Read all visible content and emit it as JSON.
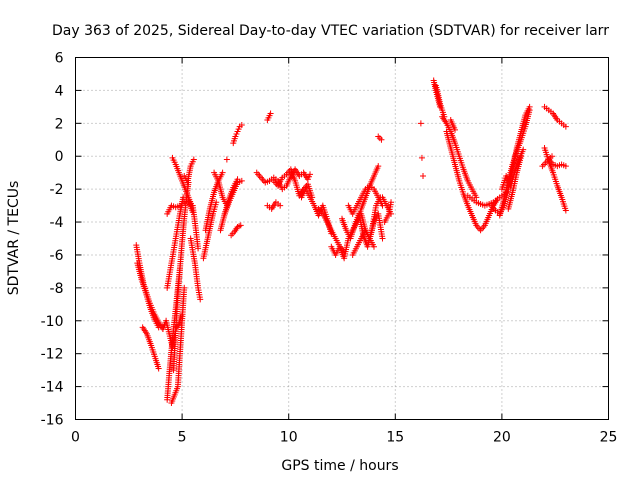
{
  "chart_data": {
    "type": "scatter",
    "title": "Day 363 of 2025, Sidereal Day-to-day VTEC variation (SDTVAR) for receiver larr",
    "xlabel": "GPS time / hours",
    "ylabel": "SDTVAR / TECUs",
    "xlim": [
      0,
      25
    ],
    "ylim": [
      -16,
      6
    ],
    "xticks": [
      "0",
      "5",
      "10",
      "15",
      "20",
      "25"
    ],
    "yticks": [
      "-16",
      "-14",
      "-12",
      "-10",
      "-8",
      "-6",
      "-4",
      "-2",
      "0",
      "2",
      "4",
      "6"
    ],
    "grid": true,
    "marker": "plus",
    "color": "#ff0000",
    "segments": [
      {
        "x": [
          2.85,
          3.0,
          3.2,
          3.45,
          3.7,
          3.95,
          4.1
        ],
        "y": [
          -5.4,
          -6.5,
          -7.8,
          -8.8,
          -9.6,
          -10.2,
          -10.5
        ]
      },
      {
        "x": [
          2.9,
          3.1,
          3.3,
          3.5,
          3.7,
          3.9
        ],
        "y": [
          -6.5,
          -7.5,
          -8.3,
          -9.2,
          -9.9,
          -10.4
        ]
      },
      {
        "x": [
          3.15,
          3.35,
          3.55,
          3.75,
          3.9
        ],
        "y": [
          -10.4,
          -10.8,
          -11.5,
          -12.3,
          -12.9
        ]
      },
      {
        "x": [
          4.1,
          4.25,
          4.4,
          4.55,
          4.7,
          4.85,
          4.95
        ],
        "y": [
          -10.5,
          -10.0,
          -10.8,
          -11.6,
          -10.5,
          -10.2,
          -9.7
        ]
      },
      {
        "x": [
          4.3,
          4.4,
          4.5,
          4.6,
          4.7,
          4.8,
          4.9
        ],
        "y": [
          -14.8,
          -13.2,
          -11.8,
          -10.5,
          -9.3,
          -8.0,
          -6.8
        ]
      },
      {
        "x": [
          4.5,
          4.65,
          4.8,
          4.9,
          5.0,
          5.1
        ],
        "y": [
          -15.0,
          -14.5,
          -14.0,
          -12.0,
          -10.0,
          -8.0
        ]
      },
      {
        "x": [
          4.6,
          4.7,
          4.8,
          4.9,
          5.0,
          5.1,
          5.2,
          5.3
        ],
        "y": [
          -13.0,
          -10.5,
          -8.5,
          -6.8,
          -5.2,
          -3.8,
          -2.6,
          -1.6
        ]
      },
      {
        "x": [
          4.55,
          4.7,
          4.85,
          5.0,
          5.15,
          5.3,
          5.45
        ],
        "y": [
          -0.1,
          -0.5,
          -1.0,
          -1.5,
          -2.0,
          -2.5,
          -3.0
        ]
      },
      {
        "x": [
          4.3,
          4.5,
          4.7,
          4.9,
          5.1,
          5.3,
          5.5
        ],
        "y": [
          -3.5,
          -3.0,
          -3.1,
          -3.0,
          -2.8,
          -2.7,
          -3.4
        ]
      },
      {
        "x": [
          4.3,
          4.5,
          4.7,
          4.9,
          5.05
        ],
        "y": [
          -8.0,
          -6.5,
          -5.0,
          -3.5,
          -2.5
        ]
      },
      {
        "x": [
          5.1,
          5.25,
          5.4,
          5.55
        ],
        "y": [
          -1.2,
          -1.6,
          -0.6,
          -0.2
        ]
      },
      {
        "x": [
          5.4,
          5.6,
          5.75,
          5.85
        ],
        "y": [
          -5.0,
          -6.5,
          -8.0,
          -8.7
        ]
      },
      {
        "x": [
          5.5,
          5.65,
          5.75
        ],
        "y": [
          -3.0,
          -4.5,
          -5.6
        ]
      },
      {
        "x": [
          6.0,
          6.15,
          6.3,
          6.45,
          6.6
        ],
        "y": [
          -6.2,
          -5.3,
          -4.4,
          -3.5,
          -2.8
        ]
      },
      {
        "x": [
          6.1,
          6.3,
          6.5,
          6.7,
          6.9
        ],
        "y": [
          -4.5,
          -3.2,
          -2.2,
          -1.5,
          -1.0
        ]
      },
      {
        "x": [
          6.8,
          7.0,
          7.2,
          7.4,
          7.6
        ],
        "y": [
          -4.5,
          -3.5,
          -2.6,
          -1.9,
          -1.4
        ]
      },
      {
        "x": [
          6.5,
          6.7,
          6.9,
          7.1
        ],
        "y": [
          -1.0,
          -1.5,
          -2.5,
          -3.0
        ]
      },
      {
        "x": [
          7.0,
          7.2,
          7.4,
          7.6,
          7.8
        ],
        "y": [
          -3.5,
          -2.8,
          -2.2,
          -1.6,
          -1.5
        ]
      },
      {
        "x": [
          7.3,
          7.45,
          7.6,
          7.75
        ],
        "y": [
          -4.8,
          -4.6,
          -4.3,
          -4.2
        ]
      },
      {
        "x": [
          7.4,
          7.5,
          7.6,
          7.7,
          7.8
        ],
        "y": [
          0.8,
          1.2,
          1.5,
          1.8,
          1.9
        ]
      },
      {
        "x": [
          7.1
        ],
        "y": [
          -0.2
        ]
      },
      {
        "x": [
          8.5,
          8.7,
          8.9,
          9.1
        ],
        "y": [
          -1.0,
          -1.3,
          -1.6,
          -1.5
        ]
      },
      {
        "x": [
          9.0,
          9.15
        ],
        "y": [
          2.2,
          2.6
        ]
      },
      {
        "x": [
          9.1,
          9.3,
          9.5,
          9.7,
          9.9,
          10.1,
          10.3,
          10.5,
          10.7,
          10.9,
          11.0
        ],
        "y": [
          -1.5,
          -1.3,
          -1.5,
          -2.0,
          -1.8,
          -1.2,
          -0.8,
          -1.2,
          -1.0,
          -1.4,
          -1.1
        ]
      },
      {
        "x": [
          9.3,
          9.5,
          9.7,
          9.9,
          10.1,
          10.3,
          10.5,
          10.7,
          10.9,
          11.1
        ],
        "y": [
          -1.5,
          -1.8,
          -1.3,
          -1.1,
          -0.8,
          -1.5,
          -2.4,
          -2.0,
          -1.7,
          -2.5
        ]
      },
      {
        "x": [
          9.0,
          9.2,
          9.4,
          9.6
        ],
        "y": [
          -3.0,
          -3.2,
          -2.8,
          -3.0
        ]
      },
      {
        "x": [
          10.6,
          10.8,
          11.0,
          11.2,
          11.4,
          11.6,
          11.8,
          12.0
        ],
        "y": [
          -2.5,
          -2.0,
          -2.5,
          -3.0,
          -3.6,
          -3.0,
          -3.8,
          -4.7
        ]
      },
      {
        "x": [
          11.4,
          11.6,
          11.8,
          12.0,
          12.2,
          12.4,
          12.6
        ],
        "y": [
          -3.2,
          -3.5,
          -4.0,
          -4.5,
          -5.0,
          -5.5,
          -5.8
        ]
      },
      {
        "x": [
          12.0,
          12.2,
          12.4,
          12.6,
          12.8,
          13.0,
          13.2,
          13.4,
          13.6,
          13.8,
          14.0,
          14.2,
          14.4
        ],
        "y": [
          -5.5,
          -6.0,
          -5.5,
          -6.2,
          -5.0,
          -4.5,
          -4.0,
          -3.5,
          -4.5,
          -5.0,
          -4.0,
          -3.5,
          -5.0
        ]
      },
      {
        "x": [
          12.5,
          12.7,
          12.9,
          13.1,
          13.3,
          13.5,
          13.7,
          13.9,
          14.1,
          14.3
        ],
        "y": [
          -3.8,
          -4.5,
          -5.0,
          -4.2,
          -3.5,
          -4.8,
          -5.5,
          -4.5,
          -3.0,
          -2.5
        ]
      },
      {
        "x": [
          12.8,
          13.0,
          13.2,
          13.4,
          13.6,
          13.8,
          14.0,
          14.2
        ],
        "y": [
          -3.0,
          -3.5,
          -3.0,
          -2.5,
          -2.0,
          -1.8,
          -1.2,
          -0.6
        ]
      },
      {
        "x": [
          13.0,
          13.2,
          13.4,
          13.6,
          13.8,
          14.0
        ],
        "y": [
          -6.0,
          -5.5,
          -5.0,
          -4.5,
          -5.0,
          -5.5
        ]
      },
      {
        "x": [
          13.2,
          13.4,
          13.6,
          13.8,
          14.0,
          14.2,
          14.4
        ],
        "y": [
          -4.0,
          -3.2,
          -2.5,
          -1.8,
          -2.0,
          -2.5,
          -3.0
        ]
      },
      {
        "x": [
          14.2,
          14.35
        ],
        "y": [
          1.2,
          1.0
        ]
      },
      {
        "x": [
          14.4,
          14.6,
          14.8
        ],
        "y": [
          -2.5,
          -3.0,
          -3.5
        ]
      },
      {
        "x": [
          14.5,
          14.7,
          14.8
        ],
        "y": [
          -4.0,
          -3.5,
          -2.8
        ]
      },
      {
        "x": [
          16.2
        ],
        "y": [
          2.0
        ]
      },
      {
        "x": [
          16.25
        ],
        "y": [
          -0.1
        ]
      },
      {
        "x": [
          16.3
        ],
        "y": [
          -1.2
        ]
      },
      {
        "x": [
          16.8,
          16.9,
          17.0,
          17.1
        ],
        "y": [
          4.6,
          4.0,
          3.5,
          3.0
        ]
      },
      {
        "x": [
          16.9,
          17.0,
          17.1,
          17.2,
          17.3
        ],
        "y": [
          4.3,
          3.8,
          3.2,
          2.8,
          2.4
        ]
      },
      {
        "x": [
          17.2,
          17.4,
          17.6,
          17.8,
          18.0,
          18.2,
          18.4,
          18.6,
          18.8
        ],
        "y": [
          2.4,
          2.0,
          1.5,
          0.8,
          0.0,
          -0.8,
          -1.5,
          -2.0,
          -2.5
        ]
      },
      {
        "x": [
          17.4,
          17.6,
          17.8,
          18.0,
          18.2,
          18.4,
          18.6,
          18.8,
          19.0,
          19.2,
          19.4,
          19.6,
          19.8
        ],
        "y": [
          1.5,
          0.5,
          -0.5,
          -1.5,
          -2.3,
          -3.0,
          -3.6,
          -4.2,
          -4.5,
          -4.2,
          -3.6,
          -3.0,
          -2.6
        ]
      },
      {
        "x": [
          17.6,
          17.8
        ],
        "y": [
          2.2,
          1.6
        ]
      },
      {
        "x": [
          18.4,
          18.6,
          18.8,
          19.0,
          19.2,
          19.4,
          19.6,
          19.8,
          20.0,
          20.2
        ],
        "y": [
          -2.4,
          -2.6,
          -2.8,
          -2.9,
          -3.0,
          -2.9,
          -2.8,
          -2.6,
          -2.4,
          -2.2
        ]
      },
      {
        "x": [
          19.5,
          19.7,
          19.9,
          20.1,
          20.3,
          20.5,
          20.7,
          20.9,
          21.1,
          21.3
        ],
        "y": [
          -3.0,
          -3.3,
          -3.5,
          -3.0,
          -2.0,
          -0.8,
          0.5,
          1.5,
          2.5,
          3.0
        ]
      },
      {
        "x": [
          19.9,
          20.1,
          20.3,
          20.5,
          20.7,
          20.9,
          21.1,
          21.3
        ],
        "y": [
          -3.6,
          -2.6,
          -1.5,
          -0.5,
          0.3,
          1.0,
          1.8,
          2.8
        ]
      },
      {
        "x": [
          20.0,
          20.2,
          20.4,
          20.6,
          20.8,
          21.0
        ],
        "y": [
          -2.0,
          -1.2,
          -1.8,
          -1.0,
          -0.2,
          0.4
        ]
      },
      {
        "x": [
          20.3,
          20.5,
          20.7,
          20.9
        ],
        "y": [
          -3.2,
          -2.2,
          -1.0,
          0.0
        ]
      },
      {
        "x": [
          22.0,
          22.2,
          22.4,
          22.6,
          22.8,
          23.0
        ],
        "y": [
          3.0,
          2.8,
          2.6,
          2.2,
          2.0,
          1.8
        ]
      },
      {
        "x": [
          22.0,
          22.2,
          22.4,
          22.6,
          22.8,
          23.0
        ],
        "y": [
          0.5,
          -0.3,
          -1.0,
          -1.8,
          -2.5,
          -3.3
        ]
      },
      {
        "x": [
          22.2,
          22.4,
          22.6,
          22.8,
          23.0
        ],
        "y": [
          -0.2,
          -0.5,
          -0.6,
          -0.5,
          -0.6
        ]
      },
      {
        "x": [
          21.9,
          22.05,
          22.2,
          22.35
        ],
        "y": [
          -0.6,
          -0.4,
          -0.2,
          0.0
        ]
      }
    ]
  }
}
